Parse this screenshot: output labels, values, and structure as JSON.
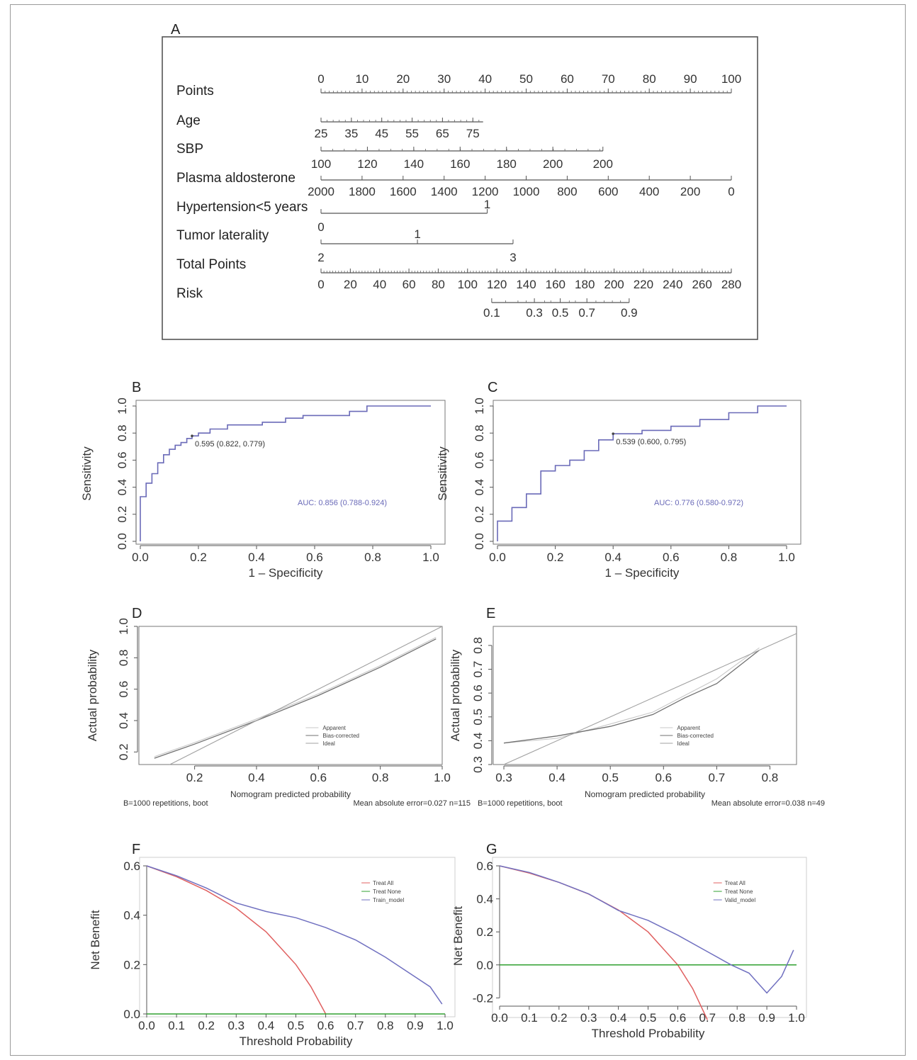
{
  "panels": {
    "A": "A",
    "B": "B",
    "C": "C",
    "D": "D",
    "E": "E",
    "F": "F",
    "G": "G"
  },
  "chart_data": [
    {
      "panel": "A",
      "type": "nomogram",
      "rows": [
        {
          "label": "Points",
          "min": 0,
          "max": 100,
          "ticks": [
            "0",
            "10",
            "20",
            "30",
            "40",
            "50",
            "60",
            "70",
            "80",
            "90",
            "100"
          ]
        },
        {
          "label": "Age",
          "ticks": [
            "25",
            "35",
            "45",
            "55",
            "65",
            "75"
          ]
        },
        {
          "label": "SBP",
          "ticks": [
            "100",
            "120",
            "140",
            "160",
            "180",
            "200",
            "200"
          ]
        },
        {
          "label": "Plasma aldosterone",
          "ticks": [
            "2000",
            "1800",
            "1600",
            "1400",
            "1200",
            "1000",
            "800",
            "600",
            "400",
            "200",
            "0"
          ]
        },
        {
          "label": "Hypertension<5 years",
          "levels": [
            "0",
            "1"
          ]
        },
        {
          "label": "Tumor laterality",
          "levels": [
            "2",
            "1",
            "3"
          ]
        },
        {
          "label": "Total Points",
          "min": 0,
          "max": 280,
          "ticks": [
            "0",
            "20",
            "40",
            "60",
            "80",
            "100",
            "120",
            "140",
            "160",
            "180",
            "200",
            "220",
            "240",
            "260",
            "280"
          ]
        },
        {
          "label": "Risk",
          "ticks": [
            "0.1",
            "0.3",
            "0.5",
            "0.7",
            "0.9"
          ]
        }
      ]
    },
    {
      "panel": "B",
      "type": "line",
      "xlabel": "1 – Specificity",
      "ylabel": "Sensitivity",
      "xlim": [
        0,
        1
      ],
      "ylim": [
        0,
        1
      ],
      "xticks": [
        "0.0",
        "0.2",
        "0.4",
        "0.6",
        "0.8",
        "1.0"
      ],
      "yticks": [
        "0.0",
        "0.2",
        "0.4",
        "0.6",
        "0.8",
        "1.0"
      ],
      "threshold_label": "0.595 (0.822, 0.779)",
      "threshold_point": [
        0.178,
        0.779
      ],
      "auc_label": "AUC: 0.856 (0.788-0.924)",
      "color": "#6a6ab8",
      "x": [
        0,
        0,
        0.02,
        0.02,
        0.04,
        0.04,
        0.06,
        0.06,
        0.08,
        0.08,
        0.1,
        0.1,
        0.12,
        0.12,
        0.14,
        0.14,
        0.16,
        0.16,
        0.178,
        0.178,
        0.2,
        0.2,
        0.24,
        0.24,
        0.3,
        0.3,
        0.42,
        0.42,
        0.5,
        0.5,
        0.56,
        0.56,
        0.72,
        0.72,
        0.78,
        0.78,
        1.0
      ],
      "y": [
        0,
        0.33,
        0.33,
        0.43,
        0.43,
        0.5,
        0.5,
        0.58,
        0.58,
        0.64,
        0.64,
        0.68,
        0.68,
        0.71,
        0.71,
        0.73,
        0.73,
        0.76,
        0.76,
        0.779,
        0.779,
        0.8,
        0.8,
        0.83,
        0.83,
        0.86,
        0.86,
        0.88,
        0.88,
        0.91,
        0.91,
        0.93,
        0.93,
        0.96,
        0.96,
        1.0,
        1.0
      ]
    },
    {
      "panel": "C",
      "type": "line",
      "xlabel": "1 – Specificity",
      "ylabel": "Sensitivity",
      "xlim": [
        0,
        1
      ],
      "ylim": [
        0,
        1
      ],
      "xticks": [
        "0.0",
        "0.2",
        "0.4",
        "0.6",
        "0.8",
        "1.0"
      ],
      "yticks": [
        "0.0",
        "0.2",
        "0.4",
        "0.6",
        "0.8",
        "1.0"
      ],
      "threshold_label": "0.539 (0.600, 0.795)",
      "threshold_point": [
        0.4,
        0.795
      ],
      "auc_label": "AUC: 0.776 (0.580-0.972)",
      "color": "#6a6ab8",
      "x": [
        0,
        0,
        0.05,
        0.05,
        0.1,
        0.1,
        0.15,
        0.15,
        0.2,
        0.2,
        0.25,
        0.25,
        0.3,
        0.3,
        0.35,
        0.35,
        0.4,
        0.4,
        0.5,
        0.5,
        0.6,
        0.6,
        0.7,
        0.7,
        0.8,
        0.8,
        0.9,
        0.9,
        1.0
      ],
      "y": [
        0,
        0.15,
        0.15,
        0.25,
        0.25,
        0.35,
        0.35,
        0.52,
        0.52,
        0.56,
        0.56,
        0.6,
        0.6,
        0.67,
        0.67,
        0.75,
        0.75,
        0.795,
        0.795,
        0.82,
        0.82,
        0.85,
        0.85,
        0.9,
        0.9,
        0.95,
        0.95,
        1.0,
        1.0
      ]
    },
    {
      "panel": "D",
      "type": "line",
      "xlabel": "Nomogram predicted probability",
      "ylabel": "Actual probability",
      "xlim": [
        0.02,
        1.0
      ],
      "ylim": [
        0.12,
        1.0
      ],
      "xticks": [
        "0.2",
        "0.4",
        "0.6",
        "0.8",
        "1.0"
      ],
      "yticks": [
        "0.2",
        "0.4",
        "0.6",
        "0.8",
        "1.0"
      ],
      "legend": [
        "Apparent",
        "Bias-corrected",
        "Ideal"
      ],
      "footer_left": "B=1000 repetitions, boot",
      "footer_right": "Mean absolute error=0.027 n=115",
      "series": [
        {
          "name": "Apparent",
          "x": [
            0.07,
            0.2,
            0.4,
            0.6,
            0.8,
            0.98
          ],
          "y": [
            0.17,
            0.26,
            0.41,
            0.57,
            0.75,
            0.93
          ]
        },
        {
          "name": "Bias-corrected",
          "x": [
            0.07,
            0.2,
            0.4,
            0.6,
            0.8,
            0.98
          ],
          "y": [
            0.16,
            0.25,
            0.4,
            0.56,
            0.74,
            0.92
          ]
        },
        {
          "name": "Ideal",
          "x": [
            0.02,
            1.0
          ],
          "y": [
            0.02,
            1.0
          ]
        }
      ]
    },
    {
      "panel": "E",
      "type": "line",
      "xlabel": "Nomogram predicted probability",
      "ylabel": "Actual probability",
      "xlim": [
        0.28,
        0.85
      ],
      "ylim": [
        0.3,
        0.88
      ],
      "xticks": [
        "0.3",
        "0.4",
        "0.5",
        "0.6",
        "0.7",
        "0.8"
      ],
      "yticks": [
        "0.3",
        "0.4",
        "0.5",
        "0.6",
        "0.7",
        "0.8"
      ],
      "legend": [
        "Apparent",
        "Bias-corrected",
        "Ideal"
      ],
      "footer_left": "B=1000 repetitions, boot",
      "footer_right": "Mean absolute error=0.038 n=49",
      "series": [
        {
          "name": "Apparent",
          "x": [
            0.3,
            0.4,
            0.5,
            0.58,
            0.64,
            0.7,
            0.78
          ],
          "y": [
            0.39,
            0.41,
            0.47,
            0.52,
            0.59,
            0.66,
            0.79
          ]
        },
        {
          "name": "Bias-corrected",
          "x": [
            0.3,
            0.4,
            0.5,
            0.58,
            0.64,
            0.7,
            0.78
          ],
          "y": [
            0.39,
            0.42,
            0.46,
            0.51,
            0.58,
            0.64,
            0.78
          ]
        },
        {
          "name": "Ideal",
          "x": [
            0.3,
            0.85
          ],
          "y": [
            0.3,
            0.85
          ]
        }
      ]
    },
    {
      "panel": "F",
      "type": "line",
      "xlabel": "Threshold Probability",
      "ylabel": "Net Benefit",
      "xlim": [
        0,
        1
      ],
      "ylim": [
        0,
        0.6
      ],
      "xticks": [
        "0.0",
        "0.1",
        "0.2",
        "0.3",
        "0.4",
        "0.5",
        "0.6",
        "0.7",
        "0.8",
        "0.9",
        "1.0"
      ],
      "yticks": [
        "0.0",
        "0.2",
        "0.4",
        "0.6"
      ],
      "legend": [
        "Treat All",
        "Treat None",
        "Train_model"
      ],
      "series": [
        {
          "name": "Treat All",
          "color": "#e06060",
          "x": [
            0,
            0.1,
            0.2,
            0.3,
            0.4,
            0.5,
            0.55,
            0.6
          ],
          "y": [
            0.6,
            0.556,
            0.5,
            0.429,
            0.333,
            0.2,
            0.111,
            0.0
          ]
        },
        {
          "name": "Treat None",
          "color": "#30a030",
          "x": [
            0,
            1
          ],
          "y": [
            0,
            0
          ]
        },
        {
          "name": "Train_model",
          "color": "#7070c0",
          "x": [
            0,
            0.1,
            0.2,
            0.3,
            0.4,
            0.5,
            0.6,
            0.7,
            0.8,
            0.9,
            0.95,
            0.99
          ],
          "y": [
            0.6,
            0.56,
            0.51,
            0.45,
            0.415,
            0.39,
            0.35,
            0.3,
            0.23,
            0.15,
            0.11,
            0.04
          ]
        }
      ]
    },
    {
      "panel": "G",
      "type": "line",
      "xlabel": "Threshold Probability",
      "ylabel": "Net Benefit",
      "xlim": [
        0,
        1
      ],
      "ylim": [
        -0.25,
        0.6
      ],
      "xticks": [
        "0.0",
        "0.1",
        "0.2",
        "0.3",
        "0.4",
        "0.5",
        "0.6",
        "0.7",
        "0.8",
        "0.9",
        "1.0"
      ],
      "yticks": [
        "-0.2",
        "0.0",
        "0.2",
        "0.4",
        "0.6"
      ],
      "legend": [
        "Treat All",
        "Treat None",
        "Valid_model"
      ],
      "series": [
        {
          "name": "Treat All",
          "color": "#e06060",
          "x": [
            0,
            0.1,
            0.2,
            0.3,
            0.4,
            0.5,
            0.6,
            0.65,
            0.7
          ],
          "y": [
            0.6,
            0.556,
            0.5,
            0.429,
            0.333,
            0.2,
            0.0,
            -0.143,
            -0.333
          ]
        },
        {
          "name": "Treat None",
          "color": "#30a030",
          "x": [
            0,
            1
          ],
          "y": [
            0,
            0
          ]
        },
        {
          "name": "Valid_model",
          "color": "#7070c0",
          "x": [
            0,
            0.1,
            0.2,
            0.3,
            0.4,
            0.5,
            0.6,
            0.7,
            0.78,
            0.84,
            0.9,
            0.95,
            0.99
          ],
          "y": [
            0.6,
            0.56,
            0.5,
            0.43,
            0.33,
            0.27,
            0.18,
            0.08,
            0.0,
            -0.05,
            -0.17,
            -0.07,
            0.09
          ]
        }
      ]
    }
  ]
}
